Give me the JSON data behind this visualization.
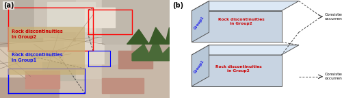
{
  "figsize": [
    5.0,
    1.43
  ],
  "dpi": 100,
  "bg_color": "#ffffff",
  "panel_a_label": "(a)",
  "panel_b_label": "(b)",
  "group2_red": "Rock discontinuities\nin Group2",
  "group1_blue": "Rock discontinuities\nin Group1",
  "group1_text": "Group1",
  "consistent_occ": "Consistent\noccurrence",
  "box_face_color": "#c8d4e2",
  "box_top_color": "#dce8f5",
  "box_left_color": "#b8c8d8",
  "rock_red": "#cc0000",
  "group_blue": "#1a1aee",
  "dashed_color": "#444444",
  "label_box_tan": "#c8b078"
}
